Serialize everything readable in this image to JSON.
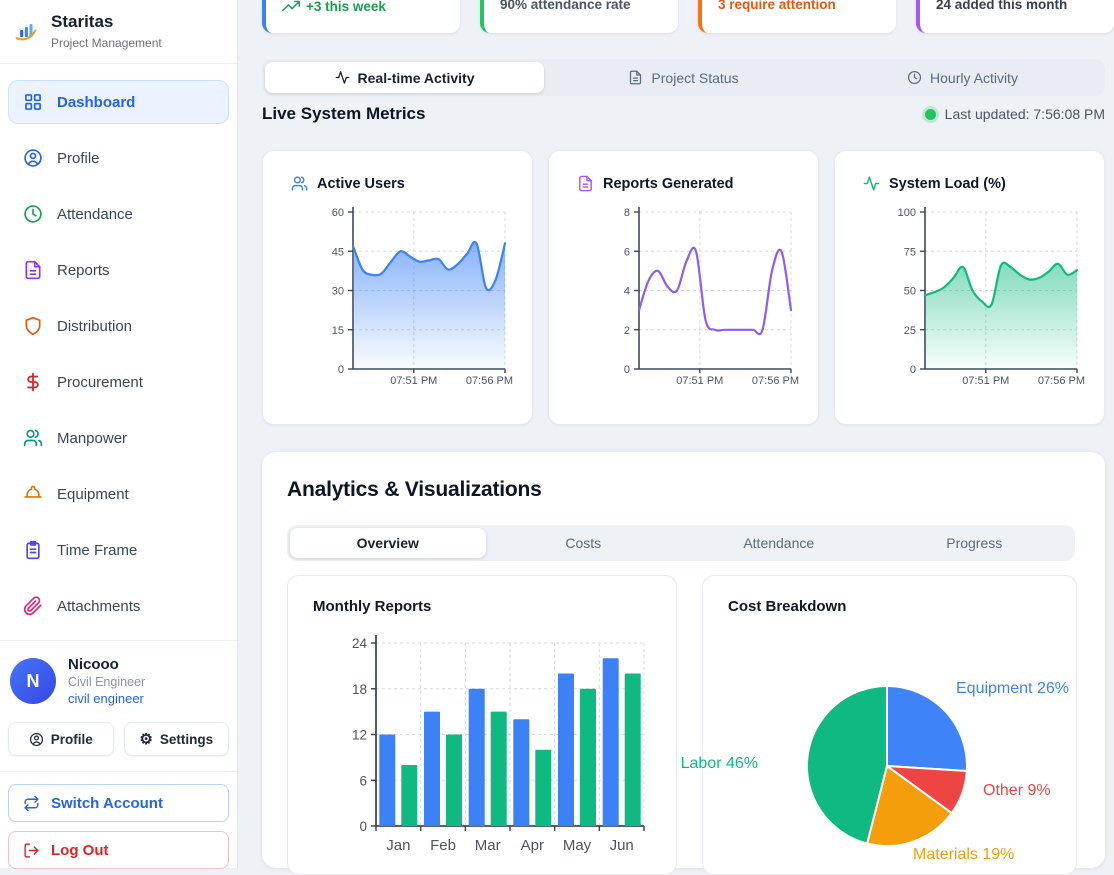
{
  "colors": {
    "accent_blue": "#3b82f6",
    "accent_green": "#10b981",
    "accent_purple": "#8b5cf6",
    "accent_red": "#ef4444",
    "accent_orange": "#f59e0b",
    "link_blue": "#2563eb",
    "status_green": "#22c55e"
  },
  "sidebar": {
    "brand": {
      "name": "Staritas",
      "subtitle": "Project Management"
    },
    "nav": [
      {
        "label": "Dashboard",
        "icon": "grid-icon",
        "icon_color": "#2563eb",
        "active": true
      },
      {
        "label": "Profile",
        "icon": "user-circle-icon",
        "icon_color": "#2563eb",
        "active": false
      },
      {
        "label": "Attendance",
        "icon": "clock-icon",
        "icon_color": "#16a34a",
        "active": false
      },
      {
        "label": "Reports",
        "icon": "file-text-icon",
        "icon_color": "#9333ea",
        "active": false
      },
      {
        "label": "Distribution",
        "icon": "shield-icon",
        "icon_color": "#ea580c",
        "active": false
      },
      {
        "label": "Procurement",
        "icon": "dollar-icon",
        "icon_color": "#dc2626",
        "active": false
      },
      {
        "label": "Manpower",
        "icon": "users-icon",
        "icon_color": "#0d9488",
        "active": false
      },
      {
        "label": "Equipment",
        "icon": "hardhat-icon",
        "icon_color": "#d97706",
        "active": false
      },
      {
        "label": "Time Frame",
        "icon": "clipboard-icon",
        "icon_color": "#4f46e5",
        "active": false
      },
      {
        "label": "Attachments",
        "icon": "paperclip-icon",
        "icon_color": "#db2777",
        "active": false
      }
    ],
    "user": {
      "initial": "N",
      "name": "Nicooo",
      "role": "Civil Engineer",
      "role_link": "civil engineer"
    },
    "actions": {
      "profile": "Profile",
      "settings": "Settings",
      "switch_account": "Switch Account",
      "log_out": "Log Out"
    }
  },
  "stat_cards": [
    {
      "subtitle": "+3 this week",
      "accent": "#3b82f6",
      "text_color": "#16a34a",
      "icon": "trending-up-icon"
    },
    {
      "subtitle": "90% attendance rate",
      "accent": "#22c55e",
      "text_color": "#4b5563",
      "icon": ""
    },
    {
      "subtitle": "3 require attention",
      "accent": "#f97316",
      "text_color": "#ea580c",
      "icon": ""
    },
    {
      "subtitle": "24 added this month",
      "accent": "#a855f7",
      "text_color": "#374151",
      "icon": ""
    }
  ],
  "activity_tabs": [
    {
      "label": "Real-time Activity",
      "icon": "activity-icon",
      "active": true
    },
    {
      "label": "Project Status",
      "icon": "file-text-icon",
      "active": false
    },
    {
      "label": "Hourly Activity",
      "icon": "clock-icon",
      "active": false
    }
  ],
  "live_metrics": {
    "title": "Live System Metrics",
    "last_updated": "Last updated: 7:56:08 PM"
  },
  "analytics": {
    "title": "Analytics & Visualizations",
    "tabs": [
      {
        "label": "Overview",
        "active": true
      },
      {
        "label": "Costs",
        "active": false
      },
      {
        "label": "Attendance",
        "active": false
      },
      {
        "label": "Progress",
        "active": false
      }
    ]
  },
  "chart_data": [
    {
      "id": "active_users",
      "type": "area",
      "title": "Active Users",
      "color": "#3b82f6",
      "ylim": [
        0,
        60
      ],
      "yticks": [
        0,
        15,
        30,
        45,
        60
      ],
      "grid": true,
      "x_ticks": [
        {
          "pos": 0.4,
          "label": "07:51 PM"
        },
        {
          "pos": 1.0,
          "label": "07:56 PM"
        }
      ],
      "values": [
        47,
        38,
        36,
        36.5,
        41,
        45,
        43,
        41,
        41.5,
        42,
        38,
        40,
        44,
        48,
        31,
        34,
        48
      ]
    },
    {
      "id": "reports_generated",
      "type": "line",
      "title": "Reports Generated",
      "color": "#8b5cf6",
      "ylim": [
        0,
        8
      ],
      "yticks": [
        0,
        2,
        4,
        6,
        8
      ],
      "grid": true,
      "x_ticks": [
        {
          "pos": 0.4,
          "label": "07:51 PM"
        },
        {
          "pos": 1.0,
          "label": "07:56 PM"
        }
      ],
      "values": [
        3,
        4.5,
        5,
        4.2,
        4,
        5.5,
        6,
        2.5,
        2,
        2,
        2,
        2,
        2,
        2,
        5,
        6,
        3
      ]
    },
    {
      "id": "system_load",
      "type": "area",
      "title": "System Load (%)",
      "color": "#10b981",
      "ylim": [
        0,
        100
      ],
      "yticks": [
        0,
        25,
        50,
        75,
        100
      ],
      "grid": true,
      "x_ticks": [
        {
          "pos": 0.4,
          "label": "07:51 PM"
        },
        {
          "pos": 1.0,
          "label": "07:56 PM"
        }
      ],
      "values": [
        47,
        49,
        52,
        58,
        65,
        50,
        43,
        41,
        66,
        65,
        60,
        57,
        58,
        62,
        67,
        60,
        63
      ]
    },
    {
      "id": "monthly_reports",
      "type": "bar",
      "title": "Monthly Reports",
      "categories": [
        "Jan",
        "Feb",
        "Mar",
        "Apr",
        "May",
        "Jun"
      ],
      "series": [
        {
          "name": "series-blue",
          "color": "#3b82f6",
          "values": [
            12,
            15,
            18,
            14,
            20,
            22
          ]
        },
        {
          "name": "series-green",
          "color": "#10b981",
          "values": [
            8,
            12,
            15,
            10,
            18,
            20
          ]
        }
      ],
      "ylim": [
        0,
        24
      ],
      "yticks": [
        0,
        6,
        12,
        18,
        24
      ],
      "grid": true
    },
    {
      "id": "cost_breakdown",
      "type": "pie",
      "title": "Cost Breakdown",
      "slices": [
        {
          "label": "Equipment",
          "value": 26,
          "color": "#3f83f8",
          "label_pos": {
            "x": 243,
            "y": 72,
            "anchor": "start"
          }
        },
        {
          "label": "Other",
          "value": 9,
          "color": "#ef4444",
          "label_pos": {
            "x": 270,
            "y": 174,
            "anchor": "start"
          }
        },
        {
          "label": "Materials",
          "value": 19,
          "color": "#f59e0b",
          "label_pos": {
            "x": 200,
            "y": 238,
            "anchor": "start"
          }
        },
        {
          "label": "Labor",
          "value": 46,
          "color": "#10b981",
          "label_pos": {
            "x": 45,
            "y": 147,
            "anchor": "end"
          }
        }
      ],
      "center": {
        "x": 174,
        "y": 145
      },
      "radius": 80,
      "start_angle": 0,
      "direction": "clockwise"
    }
  ]
}
